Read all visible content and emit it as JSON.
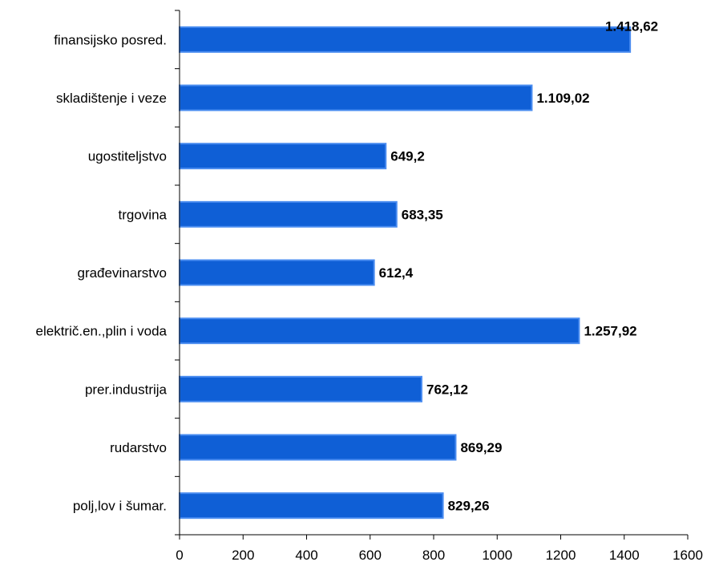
{
  "chart_data": {
    "type": "bar",
    "orientation": "horizontal",
    "categories": [
      "finansijsko posred.",
      "skladištenje i veze",
      "ugostiteljstvo",
      "trgovina",
      "građevinarstvo",
      "električ.en.,plin i voda",
      "prer.industrija",
      "rudarstvo",
      "polj,lov i šumar."
    ],
    "values": [
      1418.62,
      1109.02,
      649.2,
      683.35,
      612.4,
      1257.92,
      762.12,
      869.29,
      829.26
    ],
    "value_labels": [
      "1.418,62",
      "1.109,02",
      "649,2",
      "683,35",
      "612,4",
      "1.257,92",
      "762,12",
      "869,29",
      "829,26"
    ],
    "xlim": [
      0,
      1600
    ],
    "xticks": [
      0,
      200,
      400,
      600,
      800,
      1000,
      1200,
      1400,
      1600
    ],
    "xtick_labels": [
      "0",
      "200",
      "400",
      "600",
      "800",
      "1000",
      "1200",
      "1400",
      "1600"
    ],
    "grid": false,
    "legend": "none",
    "colors": {
      "bar_fill": "#0f5fd6",
      "bar_border": "#4a8cf0"
    }
  }
}
